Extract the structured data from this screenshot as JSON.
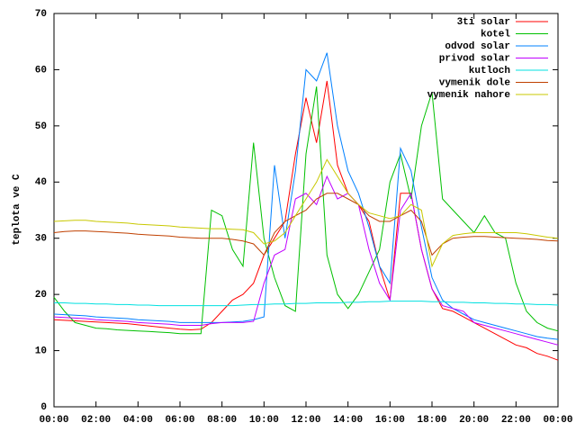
{
  "chart_data": {
    "type": "line",
    "y_label": "teplota ve C",
    "x": [
      0,
      0.5,
      1,
      1.5,
      2,
      2.5,
      3,
      3.5,
      4,
      4.5,
      5,
      5.5,
      6,
      6.5,
      7,
      7.5,
      8,
      8.5,
      9,
      9.5,
      10,
      10.5,
      11,
      11.5,
      12,
      12.5,
      13,
      13.5,
      14,
      14.5,
      15,
      15.5,
      16,
      16.5,
      17,
      17.5,
      18,
      18.5,
      19,
      19.5,
      20,
      20.5,
      21,
      21.5,
      22,
      22.5,
      23,
      23.5,
      24
    ],
    "xlim": [
      0,
      24
    ],
    "xticks": [
      {
        "value": 0,
        "label": "00:00"
      },
      {
        "value": 2,
        "label": "02:00"
      },
      {
        "value": 4,
        "label": "04:00"
      },
      {
        "value": 6,
        "label": "06:00"
      },
      {
        "value": 8,
        "label": "08:00"
      },
      {
        "value": 10,
        "label": "10:00"
      },
      {
        "value": 12,
        "label": "12:00"
      },
      {
        "value": 14,
        "label": "14:00"
      },
      {
        "value": 16,
        "label": "16:00"
      },
      {
        "value": 18,
        "label": "18:00"
      },
      {
        "value": 20,
        "label": "20:00"
      },
      {
        "value": 22,
        "label": "22:00"
      },
      {
        "value": 24,
        "label": "00:00"
      }
    ],
    "ylim": [
      0,
      70
    ],
    "yticks": [
      0,
      10,
      20,
      30,
      40,
      50,
      60,
      70
    ],
    "legend": "top-right",
    "series": [
      {
        "name": "3ti solar",
        "color": "#ff0000",
        "values": [
          15.5,
          15.4,
          15.3,
          15.2,
          15.1,
          15,
          14.9,
          14.8,
          14.6,
          14.4,
          14.2,
          14,
          13.8,
          13.7,
          13.8,
          15,
          17,
          19,
          20,
          22,
          27,
          30,
          33,
          45,
          55,
          47,
          58,
          43,
          38,
          36,
          33,
          25,
          19,
          38,
          38,
          28,
          21,
          17.5,
          17,
          16,
          15,
          14,
          13,
          12,
          11,
          10.5,
          9.5,
          9,
          8.3
        ]
      },
      {
        "name": "kotel",
        "color": "#00c000",
        "values": [
          19.5,
          17,
          15,
          14.5,
          14,
          13.9,
          13.7,
          13.6,
          13.5,
          13.4,
          13.3,
          13.2,
          13,
          13,
          13,
          35,
          34,
          28,
          25,
          47,
          30,
          23,
          18,
          17,
          45,
          57,
          27,
          20,
          17.5,
          20,
          24,
          28,
          40,
          45,
          37,
          50,
          56,
          37,
          35,
          33,
          31,
          34,
          31,
          30,
          22,
          17,
          15,
          14,
          13.5
        ]
      },
      {
        "name": "odvod solar",
        "color": "#0080ff",
        "values": [
          16.5,
          16.4,
          16.3,
          16.2,
          16,
          15.9,
          15.8,
          15.7,
          15.5,
          15.4,
          15.3,
          15.2,
          15,
          15,
          15,
          15,
          15,
          15.1,
          15.2,
          15.5,
          16,
          43,
          30,
          42,
          60,
          58,
          63,
          50,
          42,
          38,
          32,
          25,
          22,
          46,
          42,
          32,
          23,
          19,
          17.5,
          16.5,
          15.5,
          15,
          14.5,
          14,
          13.5,
          13,
          12.5,
          12.2,
          12
        ]
      },
      {
        "name": "privod solar",
        "color": "#c000ff",
        "values": [
          16,
          15.9,
          15.8,
          15.7,
          15.5,
          15.4,
          15.3,
          15.2,
          15,
          14.9,
          14.8,
          14.7,
          14.5,
          14.5,
          14.5,
          14.8,
          15,
          15,
          15,
          15.2,
          22,
          27,
          28,
          37,
          38,
          36,
          41,
          37,
          38,
          36,
          28,
          22,
          19,
          35,
          38,
          28,
          21,
          18,
          17.5,
          17,
          15,
          14.5,
          14,
          13.5,
          13,
          12.5,
          12,
          11.5,
          11
        ]
      },
      {
        "name": "kutloch",
        "color": "#00e0e0",
        "values": [
          18.5,
          18.5,
          18.4,
          18.4,
          18.3,
          18.3,
          18.2,
          18.2,
          18.1,
          18.1,
          18,
          18,
          18,
          18,
          18,
          18,
          18,
          18,
          18.1,
          18.2,
          18.2,
          18.3,
          18.3,
          18.4,
          18.4,
          18.5,
          18.5,
          18.5,
          18.6,
          18.6,
          18.7,
          18.7,
          18.8,
          18.8,
          18.8,
          18.8,
          18.7,
          18.7,
          18.6,
          18.6,
          18.5,
          18.5,
          18.4,
          18.4,
          18.3,
          18.3,
          18.2,
          18.2,
          18.1
        ]
      },
      {
        "name": "vymenik dole",
        "color": "#c04000",
        "values": [
          31,
          31.2,
          31.3,
          31.3,
          31.2,
          31.1,
          31,
          30.9,
          30.7,
          30.6,
          30.5,
          30.4,
          30.2,
          30.1,
          30,
          30,
          30,
          29.8,
          29.5,
          29,
          27,
          31,
          33,
          34,
          35,
          37,
          38,
          38,
          37,
          36,
          34,
          33,
          33,
          34,
          35,
          33,
          27,
          29,
          30,
          30.2,
          30.3,
          30.3,
          30.2,
          30.1,
          30,
          29.9,
          29.8,
          29.6,
          29.5
        ]
      },
      {
        "name": "vymenik nahore",
        "color": "#c8c800",
        "values": [
          33,
          33.1,
          33.2,
          33.2,
          33,
          32.9,
          32.8,
          32.7,
          32.5,
          32.4,
          32.3,
          32.2,
          32,
          31.9,
          31.8,
          31.7,
          31.7,
          31.6,
          31.5,
          31,
          29,
          29.5,
          31,
          34,
          37,
          40,
          44,
          41,
          38,
          36,
          34.5,
          34,
          33.5,
          34,
          36,
          35,
          25,
          29,
          30.5,
          30.8,
          31,
          31,
          31,
          31,
          31,
          30.8,
          30.5,
          30.2,
          30
        ]
      }
    ]
  }
}
